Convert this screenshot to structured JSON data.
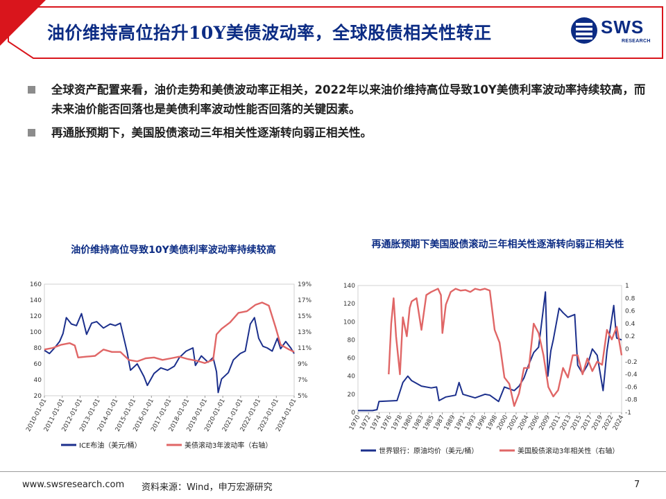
{
  "header": {
    "title": "油价维持高位抬升10Y美债波动率，全球股债相关性转正"
  },
  "logo": {
    "text": "SWS",
    "subtext": "RESEARCH",
    "color": "#0c2c84"
  },
  "bullets": [
    "全球资产配置来看，油价走势和美债波动率正相关，2022年以来油价维持高位导致10Y美债利率波动率持续较高，而未来油价能否回落也是美债利率波动性能否回落的关键因素。",
    "再通胀预期下，美国股债滚动三年相关性逐渐转向弱正相关性。"
  ],
  "colors": {
    "navy": "#1b2f8c",
    "salmon": "#e06666",
    "accent_red": "#d9151c",
    "title_blue": "#0c2c84"
  },
  "chart_data": [
    {
      "type": "line",
      "title": "油价维持高位导致10Y美债利率波动率持续较高",
      "x_ticks": [
        "2010-01-01",
        "2011-01-01",
        "2012-01-01",
        "2013-01-01",
        "2014-01-01",
        "2015-01-01",
        "2016-01-01",
        "2017-01-01",
        "2018-01-01",
        "2019-01-01",
        "2020-01-01",
        "2021-01-01",
        "2022-01-01",
        "2023-01-01",
        "2024-01-01"
      ],
      "y_left_ticks": [
        "20",
        "40",
        "60",
        "80",
        "100",
        "120",
        "140",
        "160"
      ],
      "y_right_ticks": [
        "5%",
        "7%",
        "9%",
        "11%",
        "13%",
        "15%",
        "17%",
        "19%"
      ],
      "ylim_left": [
        20,
        160
      ],
      "ylim_right": [
        5,
        19
      ],
      "xlim": [
        2010.0,
        2024.8
      ],
      "series": [
        {
          "name": "ICE布油（美元/桶）",
          "axis": "left",
          "color": "#1b2f8c",
          "x": [
            2010.0,
            2010.3,
            2010.6,
            2010.9,
            2011.1,
            2011.3,
            2011.6,
            2011.9,
            2012.2,
            2012.5,
            2012.8,
            2013.1,
            2013.5,
            2013.9,
            2014.2,
            2014.5,
            2014.9,
            2015.1,
            2015.5,
            2015.9,
            2016.1,
            2016.5,
            2016.9,
            2017.3,
            2017.7,
            2018.0,
            2018.4,
            2018.8,
            2018.95,
            2019.3,
            2019.7,
            2020.0,
            2020.2,
            2020.3,
            2020.5,
            2020.9,
            2021.2,
            2021.6,
            2021.9,
            2022.2,
            2022.45,
            2022.7,
            2022.95,
            2023.2,
            2023.5,
            2023.8,
            2024.0,
            2024.3,
            2024.6,
            2024.8
          ],
          "values": [
            77,
            73,
            80,
            88,
            98,
            118,
            110,
            108,
            123,
            97,
            111,
            113,
            105,
            110,
            108,
            111,
            75,
            52,
            60,
            44,
            33,
            48,
            55,
            52,
            57,
            68,
            76,
            80,
            58,
            70,
            62,
            68,
            50,
            24,
            41,
            49,
            65,
            73,
            76,
            110,
            118,
            92,
            82,
            80,
            76,
            92,
            79,
            88,
            80,
            73
          ]
        },
        {
          "name": "美债滚动3年波动率（右轴）",
          "axis": "right",
          "color": "#e06666",
          "x": [
            2010.0,
            2010.5,
            2011.0,
            2011.5,
            2011.8,
            2012.0,
            2012.5,
            2013.0,
            2013.5,
            2014.0,
            2014.5,
            2015.0,
            2015.5,
            2016.0,
            2016.5,
            2017.0,
            2017.5,
            2018.0,
            2018.5,
            2019.0,
            2019.5,
            2020.0,
            2020.2,
            2020.5,
            2021.0,
            2021.5,
            2022.0,
            2022.5,
            2022.9,
            2023.3,
            2023.7,
            2024.0,
            2024.5,
            2024.8
          ],
          "values": [
            10.8,
            11.0,
            11.4,
            11.6,
            11.3,
            9.8,
            9.9,
            10.0,
            10.8,
            10.5,
            10.5,
            9.5,
            9.3,
            9.7,
            9.8,
            9.5,
            9.7,
            9.9,
            9.6,
            9.4,
            9.1,
            9.5,
            12.7,
            13.4,
            14.2,
            15.4,
            15.6,
            16.4,
            16.7,
            16.3,
            13.6,
            11.4,
            10.8,
            10.5
          ]
        }
      ],
      "legend": [
        "ICE布油（美元/桶）",
        "美债滚动3年波动率（右轴）"
      ],
      "legend_position": "bottom"
    },
    {
      "type": "line",
      "title": "再通胀预期下美国股债滚动三年相关性逐渐转向弱正相关性",
      "x_ticks": [
        "1970",
        "1972",
        "1974",
        "1976",
        "1978",
        "1980",
        "1983",
        "1985",
        "1987",
        "1989",
        "1991",
        "1993",
        "1996",
        "1998",
        "2000",
        "2002",
        "2004",
        "2006",
        "2009",
        "2011",
        "2013",
        "2015",
        "2017",
        "2019",
        "2022",
        "2024"
      ],
      "y_left_ticks": [
        "0",
        "20",
        "40",
        "60",
        "80",
        "100",
        "120",
        "140"
      ],
      "y_right_ticks": [
        "-1",
        "-0.8",
        "-0.6",
        "-0.4",
        "-0.2",
        "0",
        "0.2",
        "0.4",
        "0.6",
        "0.8",
        "1"
      ],
      "ylim_left": [
        0,
        140
      ],
      "ylim_right": [
        -1,
        1
      ],
      "xlim": [
        1970,
        2024
      ],
      "series": [
        {
          "name": "世界银行：原油均价（美元/桶）",
          "axis": "left",
          "color": "#1b2f8c",
          "x": [
            1970,
            1973,
            1973.9,
            1974.3,
            1978,
            1979.2,
            1980.2,
            1981,
            1983,
            1985,
            1986.1,
            1986.6,
            1988,
            1990,
            1990.7,
            1991.5,
            1994,
            1996,
            1997,
            1998.8,
            2000,
            2002,
            2003,
            2004,
            2005,
            2006,
            2007,
            2008.4,
            2008.9,
            2009.5,
            2010,
            2011.2,
            2012,
            2013,
            2014.4,
            2015,
            2016,
            2017,
            2018,
            2019,
            2020.2,
            2020.5,
            2021,
            2022.4,
            2022.9,
            2023,
            2024
          ],
          "values": [
            2,
            2,
            3,
            12,
            13,
            33,
            40,
            35,
            29,
            27,
            28,
            13,
            17,
            19,
            33,
            20,
            16,
            20,
            19,
            12,
            28,
            24,
            29,
            38,
            53,
            66,
            72,
            133,
            40,
            68,
            80,
            115,
            110,
            105,
            108,
            52,
            43,
            52,
            70,
            63,
            24,
            40,
            68,
            118,
            85,
            82,
            80
          ]
        },
        {
          "name": "美国股债滚动3年相关性（右轴）",
          "axis": "right",
          "color": "#e06666",
          "x": [
            1976.3,
            1976.8,
            1977.3,
            1977.8,
            1978.6,
            1979.2,
            1980,
            1980.6,
            1981,
            1982,
            1983,
            1984,
            1985,
            1986.4,
            1987,
            1987.3,
            1988,
            1989,
            1990,
            1991,
            1992,
            1993,
            1994,
            1995,
            1996,
            1997,
            1998,
            1999,
            2000,
            2001,
            2002,
            2003,
            2004,
            2005,
            2006,
            2007,
            2008,
            2009,
            2010,
            2011,
            2012,
            2013,
            2014,
            2015,
            2016,
            2017,
            2018,
            2019,
            2020,
            2021,
            2022,
            2023,
            2024
          ],
          "values": [
            -0.4,
            0.4,
            0.8,
            0.2,
            -0.4,
            0.5,
            0.2,
            0.65,
            0.75,
            0.8,
            0.3,
            0.85,
            0.9,
            0.95,
            0.85,
            0.25,
            0.7,
            0.9,
            0.95,
            0.92,
            0.93,
            0.9,
            0.95,
            0.93,
            0.95,
            0.92,
            0.3,
            0.1,
            -0.45,
            -0.55,
            -0.9,
            -0.7,
            -0.3,
            -0.3,
            0.4,
            0.25,
            -0.1,
            -0.6,
            -0.75,
            -0.65,
            -0.3,
            -0.45,
            -0.1,
            -0.1,
            -0.4,
            -0.15,
            -0.35,
            -0.2,
            -0.25,
            0.3,
            0.15,
            0.35,
            -0.1
          ]
        }
      ],
      "legend": [
        "世界银行：原油均价（美元/桶）",
        "美国股债滚动3年相关性（右轴）"
      ],
      "legend_position": "bottom"
    }
  ],
  "footer": {
    "url": "www.swsresearch.com",
    "source": "资料来源：Wind，申万宏源研究",
    "page": "7"
  }
}
